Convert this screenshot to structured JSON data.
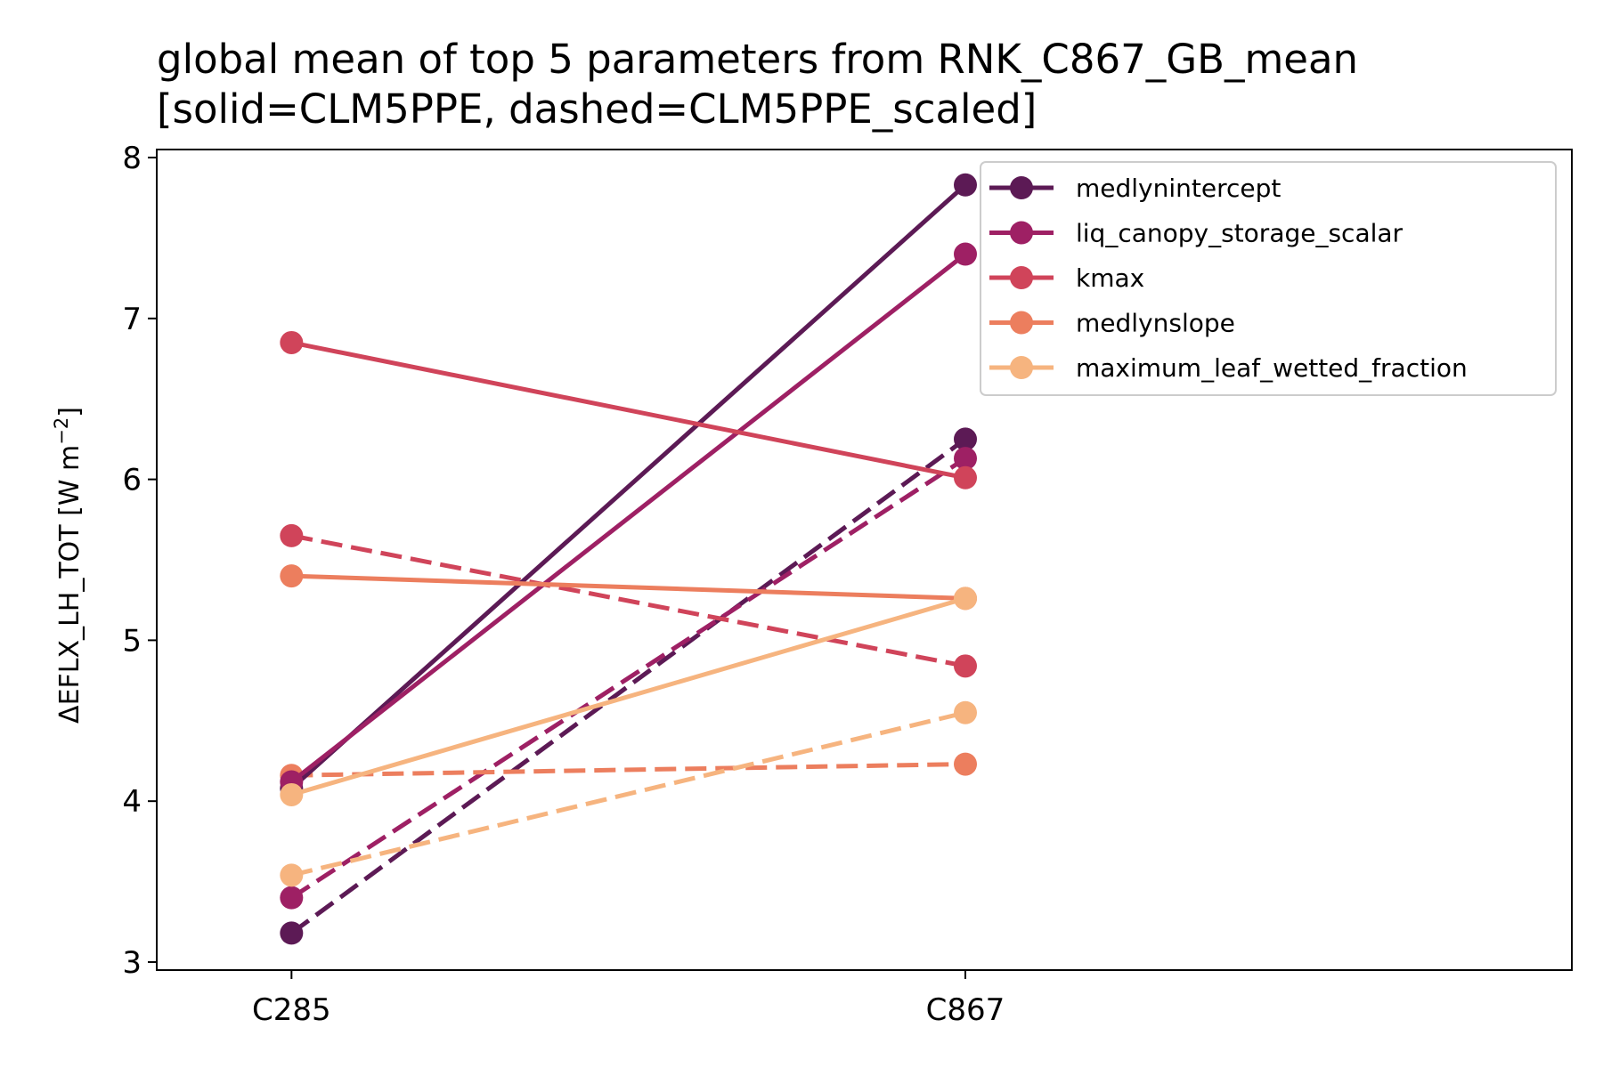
{
  "chart_data": {
    "type": "line",
    "title_lines": [
      "global mean of top 5 parameters from RNK_C867_GB_mean",
      "[solid=CLM5PPE, dashed=CLM5PPE_scaled]"
    ],
    "xlabel": "",
    "ylabel": "ΔEFLX_LH_TOT [W m",
    "ylabel_sup": "−2",
    "ylabel_end": "]",
    "categories": [
      "C285",
      "C867"
    ],
    "xlim": [
      -0.2,
      1.9
    ],
    "ylim": [
      2.95,
      8.05
    ],
    "yticks": [
      3,
      4,
      5,
      6,
      7,
      8
    ],
    "grid": false,
    "legend_position": "top-right",
    "series": [
      {
        "name": "medlynintercept",
        "color": "#5c1a55",
        "solid": [
          4.08,
          7.83
        ],
        "dashed": [
          3.18,
          6.25
        ]
      },
      {
        "name": "liq_canopy_storage_scalar",
        "color": "#9e2064",
        "solid": [
          4.12,
          7.4
        ],
        "dashed": [
          3.4,
          6.13
        ]
      },
      {
        "name": "kmax",
        "color": "#d0445a",
        "solid": [
          6.85,
          6.01
        ],
        "dashed": [
          5.65,
          4.84
        ]
      },
      {
        "name": "medlynslope",
        "color": "#ec7e5e",
        "solid": [
          5.4,
          5.26
        ],
        "dashed": [
          4.16,
          4.23
        ]
      },
      {
        "name": "maximum_leaf_wetted_fraction",
        "color": "#f6b47f",
        "solid": [
          4.04,
          5.26
        ],
        "dashed": [
          3.54,
          4.55
        ]
      }
    ]
  }
}
